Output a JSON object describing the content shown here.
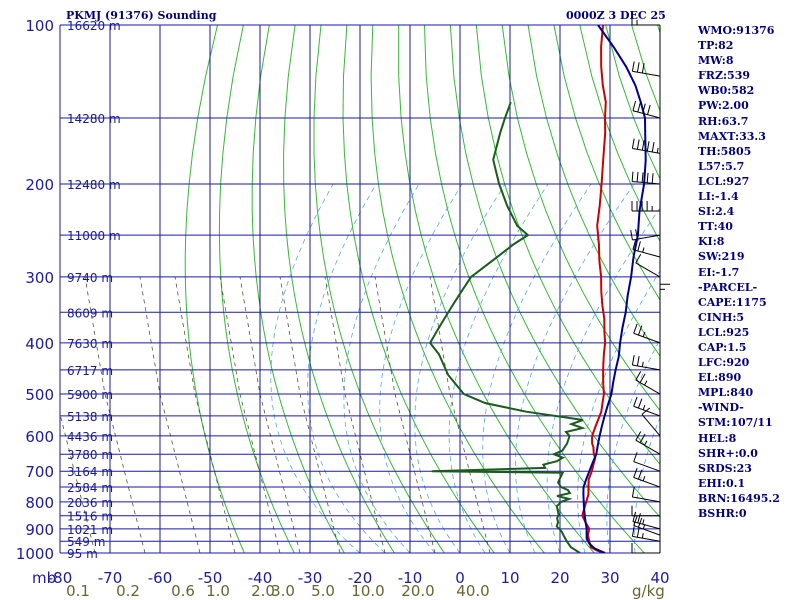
{
  "header": {
    "station": "PKMJ (91376) Sounding",
    "time": "0000Z  3 DEC 25"
  },
  "chart_data": {
    "type": "line",
    "title": "PKMJ (91376) Sounding",
    "subtitle": "0000Z  3 DEC 25",
    "x_axis_unit": "",
    "y_axis_unit": "mb",
    "pressure_ticks": [
      100,
      200,
      300,
      400,
      500,
      600,
      700,
      800,
      900,
      1000
    ],
    "temp_ticks": [
      -80,
      -70,
      -60,
      -50,
      -40,
      -30,
      -20,
      -10,
      0,
      10,
      20,
      30,
      40
    ],
    "xlim": [
      -80,
      40
    ],
    "ylim": [
      100,
      1000
    ],
    "height_labels": [
      {
        "p": 100,
        "label": "16620 m"
      },
      {
        "p": 150,
        "label": "14280 m"
      },
      {
        "p": 200,
        "label": "12480 m"
      },
      {
        "p": 250,
        "label": "11000 m"
      },
      {
        "p": 300,
        "label": "9740 m"
      },
      {
        "p": 350,
        "label": "8609 m"
      },
      {
        "p": 400,
        "label": "7630 m"
      },
      {
        "p": 450,
        "label": "6717 m"
      },
      {
        "p": 500,
        "label": "5900 m"
      },
      {
        "p": 550,
        "label": "5138 m"
      },
      {
        "p": 600,
        "label": "4436 m"
      },
      {
        "p": 650,
        "label": "3780 m"
      },
      {
        "p": 700,
        "label": "3164 m"
      },
      {
        "p": 750,
        "label": "2584 m"
      },
      {
        "p": 800,
        "label": "2036 m"
      },
      {
        "p": 850,
        "label": "1516 m"
      },
      {
        "p": 900,
        "label": "1021 m"
      },
      {
        "p": 950,
        "label": "549 m"
      },
      {
        "p": 1000,
        "label": "95 m"
      }
    ],
    "mixing_ratio_labels": [
      {
        "value": "0.1",
        "t": -78
      },
      {
        "value": "0.2",
        "t": -68
      },
      {
        "value": "0.6",
        "t": -57
      },
      {
        "value": "1.0",
        "t": -50
      },
      {
        "value": "2.0",
        "t": -41
      },
      {
        "value": "3.0",
        "t": -37
      },
      {
        "value": "5.0",
        "t": -29
      },
      {
        "value": "10.0",
        "t": -20
      },
      {
        "value": "20.0",
        "t": -10
      },
      {
        "value": "40.0",
        "t": 1
      }
    ],
    "mixing_ratio_unit": "g/kg",
    "series": [
      {
        "name": "",
        "color": "#cc0000",
        "points": [
          [
            1000,
            29
          ],
          [
            990,
            27
          ],
          [
            975,
            25
          ],
          [
            950,
            23.5
          ],
          [
            925,
            22
          ],
          [
            900,
            21
          ],
          [
            875,
            19
          ],
          [
            850,
            17
          ],
          [
            825,
            16
          ],
          [
            800,
            15
          ],
          [
            775,
            14
          ],
          [
            750,
            12.5
          ],
          [
            725,
            11
          ],
          [
            700,
            10
          ],
          [
            680,
            9
          ],
          [
            660,
            8
          ],
          [
            650,
            7
          ],
          [
            630,
            5.5
          ],
          [
            620,
            4.5
          ],
          [
            600,
            3
          ],
          [
            580,
            2
          ],
          [
            560,
            1
          ],
          [
            540,
            0
          ],
          [
            520,
            -1.5
          ],
          [
            500,
            -3
          ],
          [
            480,
            -5
          ],
          [
            460,
            -7
          ],
          [
            440,
            -9
          ],
          [
            420,
            -11
          ],
          [
            400,
            -13
          ],
          [
            380,
            -15.5
          ],
          [
            360,
            -18
          ],
          [
            340,
            -21
          ],
          [
            320,
            -24
          ],
          [
            300,
            -27
          ],
          [
            280,
            -30.5
          ],
          [
            260,
            -34
          ],
          [
            240,
            -38
          ],
          [
            220,
            -41.5
          ],
          [
            200,
            -45.5
          ],
          [
            180,
            -50
          ],
          [
            160,
            -55
          ],
          [
            150,
            -58
          ],
          [
            140,
            -61
          ],
          [
            130,
            -65
          ],
          [
            120,
            -69
          ],
          [
            110,
            -73
          ],
          [
            100,
            -77
          ]
        ]
      },
      {
        "name": "",
        "color": "#00008b",
        "points": [
          [
            1000,
            29
          ],
          [
            980,
            26
          ],
          [
            960,
            24
          ],
          [
            940,
            22.5
          ],
          [
            920,
            21.5
          ],
          [
            900,
            20.5
          ],
          [
            875,
            19
          ],
          [
            850,
            17.5
          ],
          [
            825,
            16
          ],
          [
            800,
            14.5
          ],
          [
            775,
            13
          ],
          [
            750,
            11.5
          ],
          [
            725,
            10.5
          ],
          [
            700,
            9.5
          ],
          [
            675,
            8.5
          ],
          [
            650,
            7.5
          ],
          [
            625,
            6
          ],
          [
            600,
            4.5
          ],
          [
            575,
            3
          ],
          [
            550,
            1.5
          ],
          [
            525,
            0
          ],
          [
            500,
            -1.5
          ],
          [
            475,
            -3.5
          ],
          [
            450,
            -5.5
          ],
          [
            425,
            -7.5
          ],
          [
            400,
            -10
          ],
          [
            375,
            -12.5
          ],
          [
            350,
            -15
          ],
          [
            325,
            -18
          ],
          [
            300,
            -21
          ],
          [
            275,
            -24.5
          ],
          [
            250,
            -28
          ],
          [
            225,
            -32.5
          ],
          [
            200,
            -37
          ],
          [
            180,
            -41.5
          ],
          [
            160,
            -47
          ],
          [
            150,
            -50
          ],
          [
            140,
            -54
          ],
          [
            130,
            -58.5
          ],
          [
            120,
            -64
          ],
          [
            110,
            -70.5
          ],
          [
            100,
            -78
          ]
        ]
      },
      {
        "name": "",
        "color": "#1a5c1a",
        "points": [
          [
            1000,
            24
          ],
          [
            975,
            21
          ],
          [
            950,
            19
          ],
          [
            930,
            17.5
          ],
          [
            910,
            16
          ],
          [
            890,
            14
          ],
          [
            875,
            13.5
          ],
          [
            860,
            12.5
          ],
          [
            845,
            12
          ],
          [
            830,
            11
          ],
          [
            815,
            10
          ],
          [
            800,
            10
          ],
          [
            790,
            11
          ],
          [
            780,
            8
          ],
          [
            770,
            10
          ],
          [
            760,
            9
          ],
          [
            750,
            7
          ],
          [
            735,
            5.5
          ],
          [
            720,
            5
          ],
          [
            705,
            4.5
          ],
          [
            700,
            -22
          ],
          [
            690,
            0
          ],
          [
            680,
            -1
          ],
          [
            670,
            1
          ],
          [
            660,
            1.5
          ],
          [
            650,
            -1
          ],
          [
            640,
            0
          ],
          [
            620,
            -0.5
          ],
          [
            600,
            -1.5
          ],
          [
            590,
            -3
          ],
          [
            580,
            -0.5
          ],
          [
            570,
            -3.5
          ],
          [
            560,
            -2
          ],
          [
            540,
            -15
          ],
          [
            520,
            -25
          ],
          [
            500,
            -31
          ],
          [
            460,
            -38
          ],
          [
            420,
            -44
          ],
          [
            400,
            -48
          ],
          [
            380,
            -49
          ],
          [
            360,
            -50
          ],
          [
            340,
            -51
          ],
          [
            320,
            -52
          ],
          [
            300,
            -53
          ],
          [
            280,
            -52
          ],
          [
            260,
            -51
          ],
          [
            250,
            -50
          ],
          [
            240,
            -54
          ],
          [
            220,
            -60
          ],
          [
            200,
            -66
          ],
          [
            180,
            -72
          ],
          [
            160,
            -76
          ],
          [
            150,
            -78
          ],
          [
            140,
            -80
          ]
        ]
      }
    ]
  },
  "stats": [
    "WMO:91376",
    "TP:82",
    "MW:8",
    "FRZ:539",
    "WB0:582",
    "PW:2.00",
    "RH:63.7",
    "MAXT:33.3",
    "TH:5805",
    "L57:5.7",
    "LCL:927",
    "LI:-1.4",
    "SI:2.4",
    "TT:40",
    "KI:8",
    "SW:219",
    "EI:-1.7",
    "-PARCEL-",
    "CAPE:1175",
    "CINH:5",
    "LCL:925",
    "CAP:1.5",
    "LFC:920",
    "EL:890",
    "MPL:840",
    "-WIND-",
    "STM:107/11",
    "HEL:8",
    "SHR+:0.0",
    "SRDS:23",
    "EHI:0.1",
    "BRN:16495.2",
    "BSHR:0"
  ],
  "wind_barbs": [
    {
      "p": 100,
      "dir": 270,
      "spd": 5
    },
    {
      "p": 125,
      "dir": 280,
      "spd": 30
    },
    {
      "p": 150,
      "dir": 285,
      "spd": 40
    },
    {
      "p": 175,
      "dir": 280,
      "spd": 45
    },
    {
      "p": 200,
      "dir": 275,
      "spd": 50
    },
    {
      "p": 225,
      "dir": 270,
      "spd": 35
    },
    {
      "p": 250,
      "dir": 260,
      "spd": 20
    },
    {
      "p": 275,
      "dir": 285,
      "spd": 15
    },
    {
      "p": 300,
      "dir": 300,
      "spd": 10
    },
    {
      "p": 350,
      "dir": 0,
      "spd": 5
    },
    {
      "p": 400,
      "dir": 290,
      "spd": 15
    },
    {
      "p": 450,
      "dir": 280,
      "spd": 15
    },
    {
      "p": 500,
      "dir": 300,
      "spd": 15
    },
    {
      "p": 550,
      "dir": 290,
      "spd": 15
    },
    {
      "p": 600,
      "dir": 320,
      "spd": 10
    },
    {
      "p": 650,
      "dir": 300,
      "spd": 15
    },
    {
      "p": 700,
      "dir": 290,
      "spd": 10
    },
    {
      "p": 750,
      "dir": 290,
      "spd": 15
    },
    {
      "p": 800,
      "dir": 280,
      "spd": 10
    },
    {
      "p": 850,
      "dir": 270,
      "spd": 10
    },
    {
      "p": 900,
      "dir": 285,
      "spd": 15
    },
    {
      "p": 925,
      "dir": 290,
      "spd": 15
    },
    {
      "p": 950,
      "dir": 280,
      "spd": 15
    },
    {
      "p": 1000,
      "dir": 270,
      "spd": 10
    }
  ]
}
